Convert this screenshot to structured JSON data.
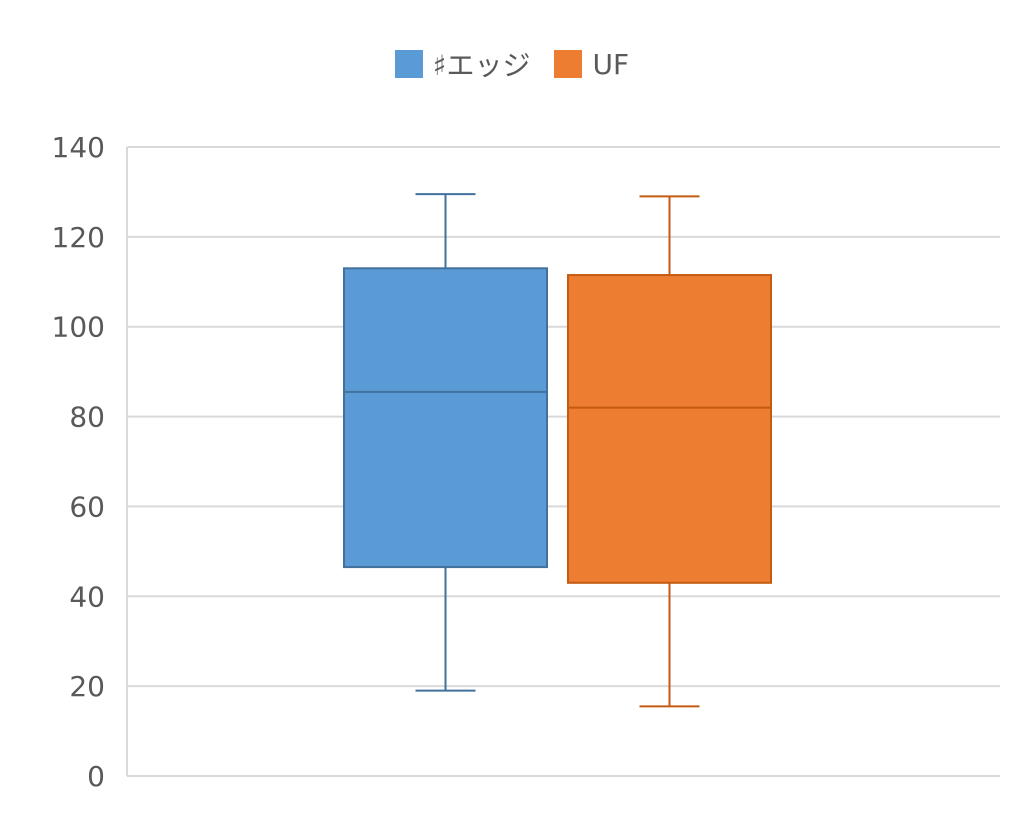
{
  "chart_data": {
    "type": "box",
    "title": "",
    "xlabel": "",
    "ylabel": "",
    "ylim": [
      0,
      140
    ],
    "yticks": [
      0,
      20,
      40,
      60,
      80,
      100,
      120,
      140
    ],
    "grid": true,
    "legend_position": "top-center",
    "series": [
      {
        "name": "♯エッジ",
        "color": "#5B9BD5",
        "edge": "#41719C",
        "min": 19,
        "q1": 46.5,
        "median": 85.5,
        "q3": 113,
        "max": 129.5
      },
      {
        "name": "UF",
        "color": "#ED7D31",
        "edge": "#C55A11",
        "min": 15.5,
        "q1": 43,
        "median": 82,
        "q3": 111.5,
        "max": 129
      }
    ]
  }
}
